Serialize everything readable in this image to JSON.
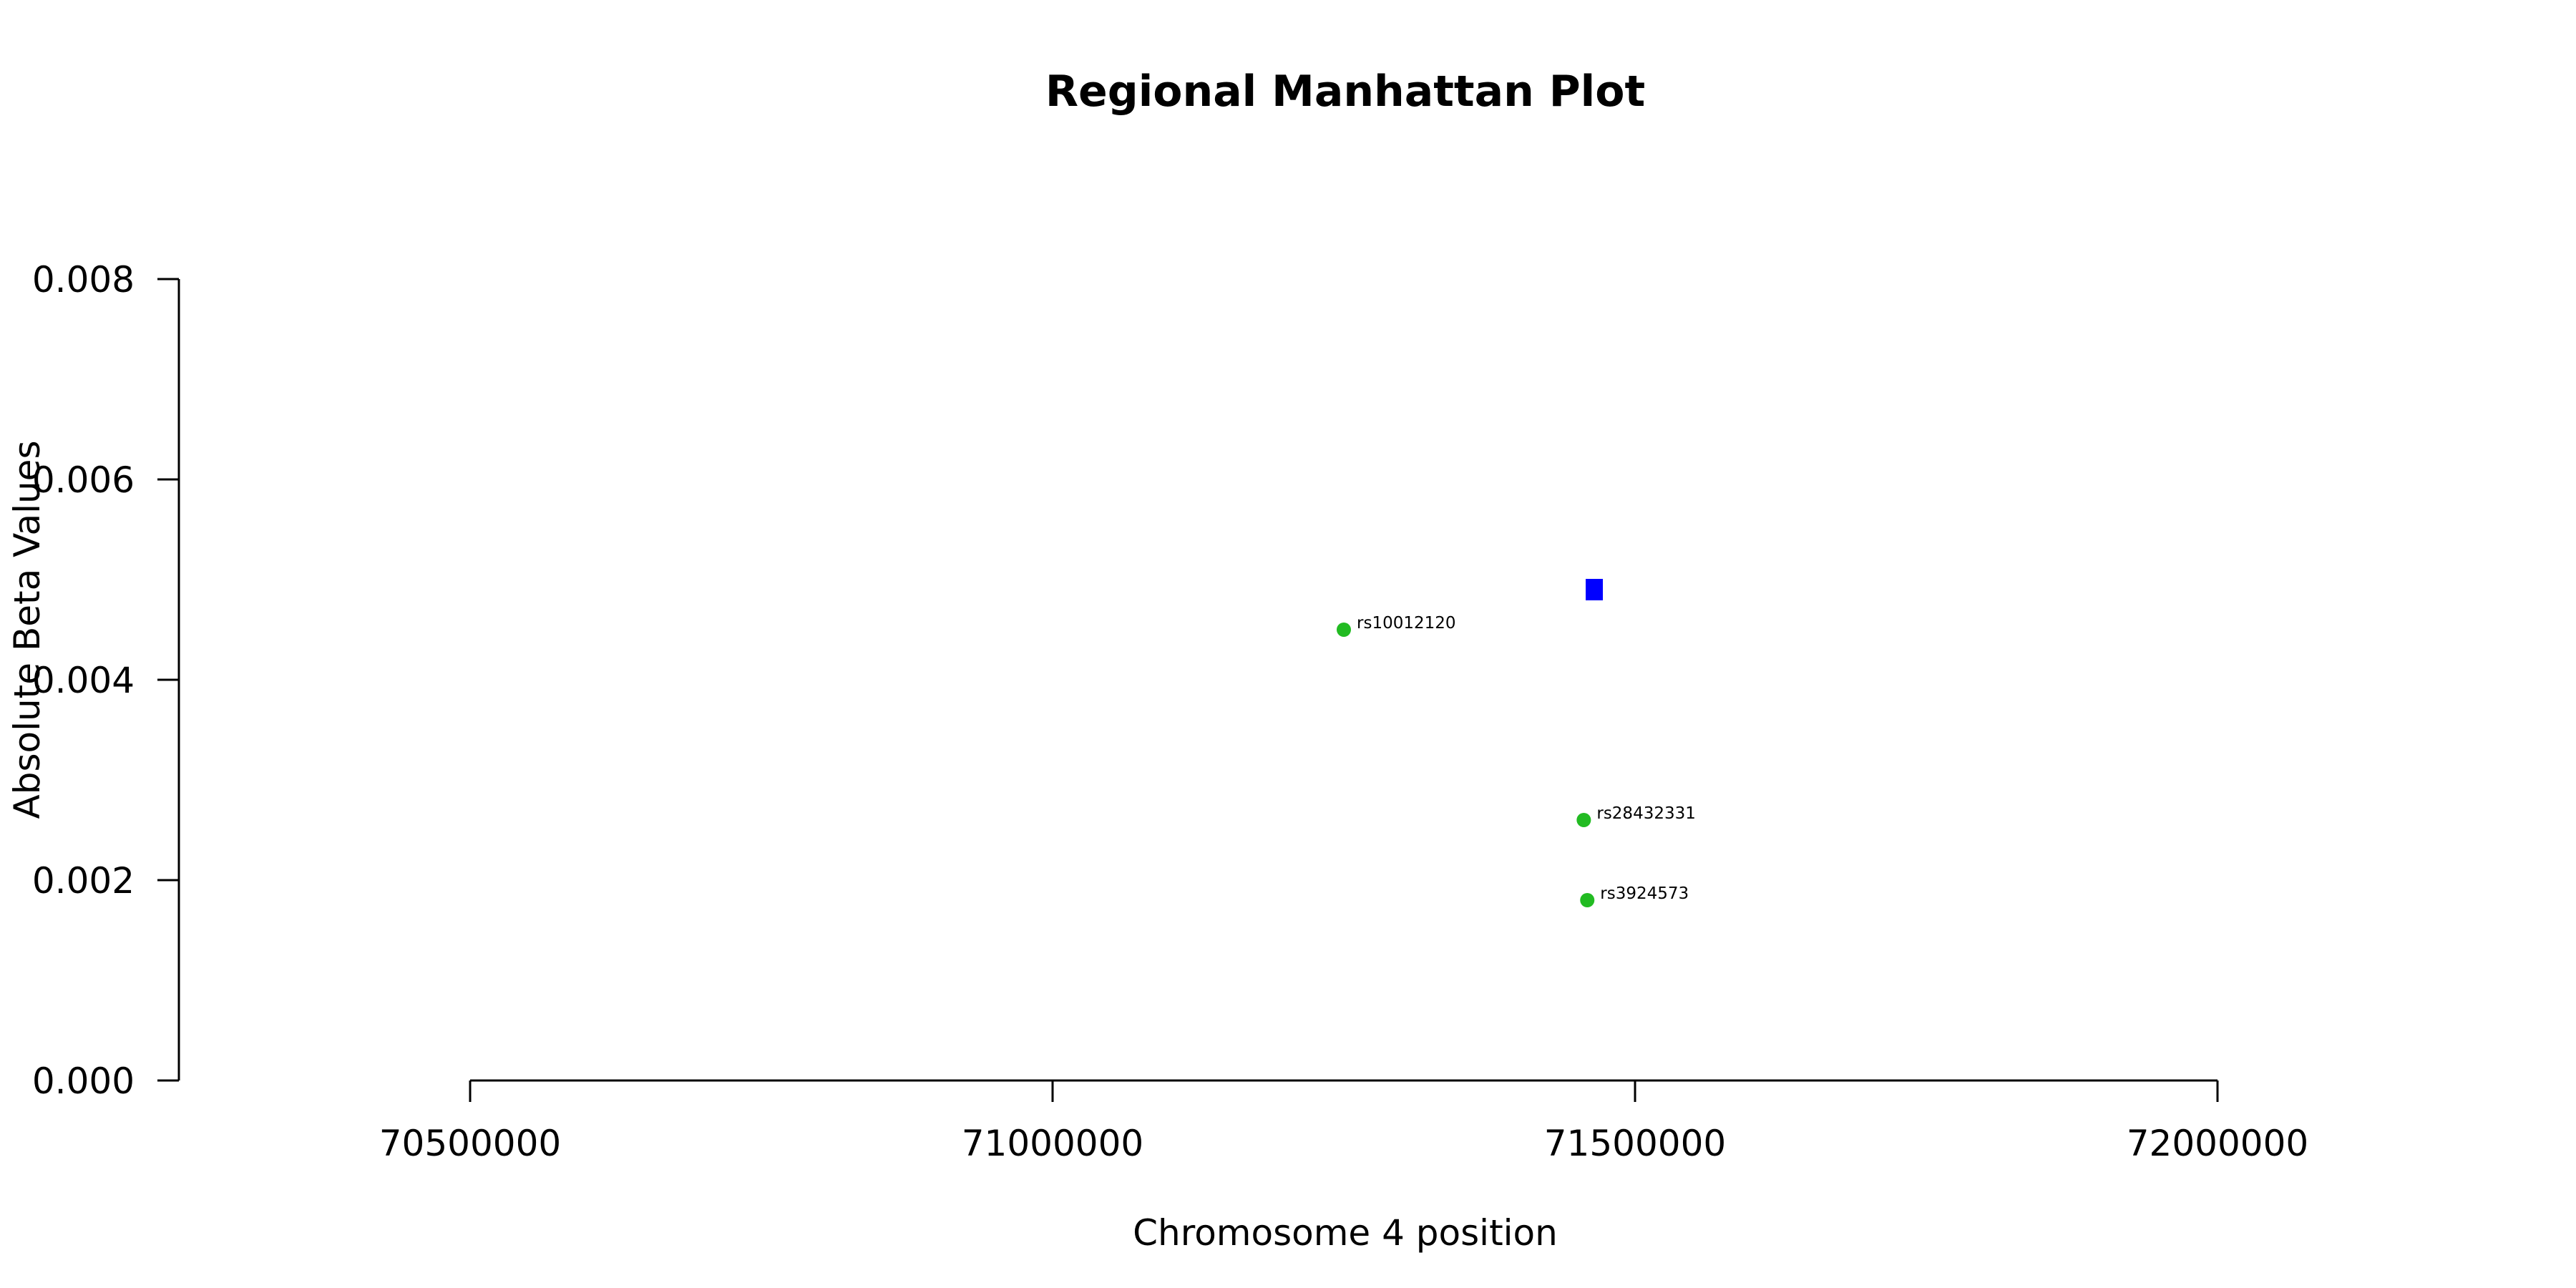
{
  "chart_data": {
    "type": "scatter",
    "title": "Regional Manhattan Plot",
    "xlabel": "Chromosome 4 position",
    "ylabel": "Absolute Beta Values",
    "xlim": [
      70250000,
      72250000
    ],
    "ylim": [
      0,
      0.008
    ],
    "x_ticks": [
      70500000,
      71000000,
      71500000,
      72000000
    ],
    "x_tick_labels": [
      "70500000",
      "71000000",
      "71500000",
      "72000000"
    ],
    "y_ticks": [
      0,
      0.002,
      0.004,
      0.006,
      0.008
    ],
    "y_tick_labels": [
      "0.000",
      "0.002",
      "0.004",
      "0.006",
      "0.008"
    ],
    "grid": false,
    "series": [
      {
        "marker": "circle",
        "color": "#22bb22",
        "points": [
          {
            "x": 71250000,
            "y": 0.0045,
            "label": "rs10012120"
          },
          {
            "x": 71456000,
            "y": 0.0026,
            "label": "rs28432331"
          },
          {
            "x": 71459000,
            "y": 0.0018,
            "label": "rs3924573"
          }
        ]
      },
      {
        "marker": "square",
        "color": "#0000ff",
        "points": [
          {
            "x": 71465000,
            "y": 0.0049,
            "label": ""
          }
        ]
      }
    ]
  }
}
